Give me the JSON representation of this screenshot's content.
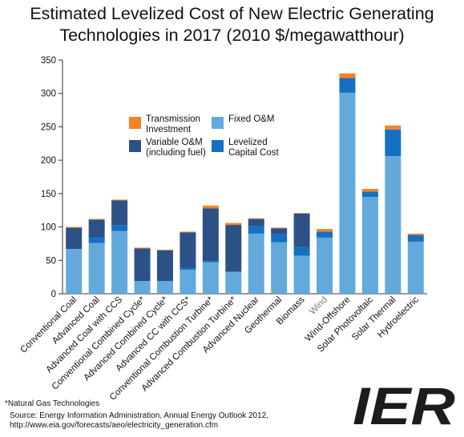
{
  "chart_data": {
    "type": "bar",
    "stacked": true,
    "title_lines": [
      "Estimated Levelized Cost of New Electric Generating",
      "Technologies in 2017 (2010 $/megawatthour)"
    ],
    "ylim": [
      0,
      350
    ],
    "yticks": [
      0,
      50,
      100,
      150,
      200,
      250,
      300,
      350
    ],
    "categories": [
      "Conventional Coal",
      "Advanced Coal",
      "Advanced Coal with CCS",
      "Conventional Combined Cycle*",
      "Advanced Combined Cycle*",
      "Advanced CC with CCS*",
      "Conventional Combustion Turbine*",
      "Advanced Combustion Turbine*",
      "Advanced Nuclear",
      "Geothermal",
      "Biomass",
      "Wind",
      "Wind-Offshore",
      "Solar Photovoltaic",
      "Solar Thermal",
      "Hydroelectric"
    ],
    "series": [
      {
        "name": "Fixed O&M",
        "color": "#64a9dc",
        "values": [
          67,
          76,
          94,
          19,
          19,
          36,
          47,
          33,
          90,
          77,
          57,
          84,
          301,
          145,
          206,
          78
        ]
      },
      {
        "name": "Levelized Capital Cost",
        "color": "#1570c4",
        "values": [
          0,
          8,
          9,
          0,
          0,
          3,
          2,
          0,
          11,
          12,
          13,
          9,
          22,
          8,
          40,
          10
        ]
      },
      {
        "name": "Variable O&M (including fuel)",
        "color": "#2c5187",
        "values": [
          32,
          27,
          37,
          49,
          46,
          53,
          79,
          70,
          11,
          9,
          50,
          0,
          0,
          0,
          0,
          0
        ]
      },
      {
        "name": "Transmission Investment",
        "color": "#f58326",
        "values": [
          1,
          1,
          1,
          1,
          1,
          1,
          4,
          3,
          1,
          1,
          1,
          4,
          7,
          4,
          6,
          2
        ]
      }
    ],
    "legend": {
      "placement": "top-left-inside",
      "items": [
        {
          "label_lines": [
            "Transmission",
            "Investment"
          ],
          "color": "#f58326"
        },
        {
          "label_lines": [
            "Fixed O&M"
          ],
          "color": "#64a9dc"
        },
        {
          "label_lines": [
            "Variable O&M",
            "(including fuel)"
          ],
          "color": "#2c5187"
        },
        {
          "label_lines": [
            "Levelized",
            "Capital Cost"
          ],
          "color": "#1570c4"
        }
      ]
    },
    "grid": false
  },
  "footnote": "*Natural Gas Technologies",
  "source_lines": [
    "Source: Energy Information Administration, Annual Energy Outlook 2012,",
    "http://www.eia.gov/forecasts/aeo/electricity_generation.cfm"
  ],
  "logo": {
    "text": "IER",
    "color": "#1c1c1c"
  }
}
